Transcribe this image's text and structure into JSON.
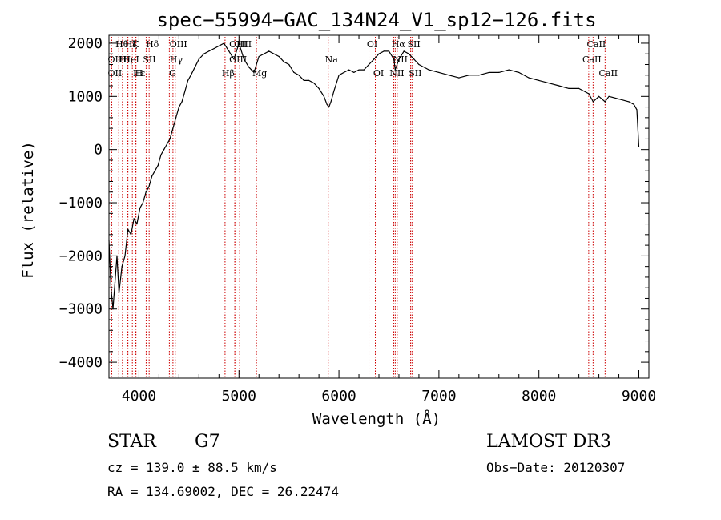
{
  "chart_data": {
    "type": "line",
    "title": "spec−55994−GAC_134N24_V1_sp12−126.fits",
    "xlabel": "Wavelength (Å)",
    "ylabel": "Flux (relative)",
    "xlim": [
      3700,
      9100
    ],
    "ylim": [
      -4300,
      2150
    ],
    "x_ticks": [
      4000,
      5000,
      6000,
      7000,
      8000,
      9000
    ],
    "x_tick_labels": [
      "4000",
      "5000",
      "6000",
      "7000",
      "8000",
      "9000"
    ],
    "y_ticks": [
      -4000,
      -3000,
      -2000,
      -1000,
      0,
      1000,
      2000
    ],
    "y_tick_labels": [
      "−4000",
      "−3000",
      "−2000",
      "−1000",
      "0",
      "1000",
      "2000"
    ],
    "series": [
      {
        "name": "spectrum",
        "x": [
          3700,
          3720,
          3740,
          3760,
          3780,
          3800,
          3830,
          3860,
          3890,
          3920,
          3950,
          3980,
          4010,
          4040,
          4070,
          4100,
          4130,
          4160,
          4190,
          4220,
          4250,
          4280,
          4310,
          4340,
          4370,
          4400,
          4430,
          4460,
          4490,
          4520,
          4560,
          4600,
          4650,
          4700,
          4750,
          4800,
          4850,
          4900,
          4950,
          5000,
          5050,
          5100,
          5150,
          5200,
          5250,
          5300,
          5350,
          5400,
          5450,
          5500,
          5550,
          5600,
          5650,
          5700,
          5750,
          5800,
          5850,
          5880,
          5900,
          5920,
          5950,
          6000,
          6050,
          6100,
          6150,
          6200,
          6250,
          6300,
          6350,
          6400,
          6450,
          6500,
          6550,
          6563,
          6600,
          6650,
          6700,
          6750,
          6800,
          6900,
          7000,
          7100,
          7200,
          7300,
          7400,
          7500,
          7600,
          7700,
          7800,
          7900,
          8000,
          8100,
          8200,
          8300,
          8400,
          8500,
          8542,
          8600,
          8662,
          8700,
          8800,
          8900,
          8950,
          8980,
          9000
        ],
        "values": [
          -1700,
          -2600,
          -3000,
          -2500,
          -2000,
          -2700,
          -2200,
          -2000,
          -1500,
          -1600,
          -1300,
          -1400,
          -1100,
          -1000,
          -800,
          -700,
          -500,
          -400,
          -300,
          -100,
          0,
          100,
          200,
          400,
          600,
          800,
          900,
          1100,
          1300,
          1400,
          1550,
          1700,
          1800,
          1850,
          1900,
          1950,
          2000,
          1850,
          1700,
          2000,
          1700,
          1550,
          1450,
          1750,
          1800,
          1850,
          1800,
          1750,
          1650,
          1600,
          1450,
          1400,
          1300,
          1300,
          1250,
          1150,
          1000,
          850,
          800,
          900,
          1100,
          1400,
          1450,
          1500,
          1450,
          1500,
          1500,
          1600,
          1700,
          1800,
          1850,
          1850,
          1700,
          1500,
          1700,
          1850,
          1800,
          1700,
          1600,
          1500,
          1450,
          1400,
          1350,
          1400,
          1400,
          1450,
          1450,
          1500,
          1450,
          1350,
          1300,
          1250,
          1200,
          1150,
          1150,
          1050,
          900,
          1000,
          900,
          1000,
          950,
          900,
          850,
          750,
          50
        ]
      }
    ],
    "line_markers": [
      {
        "label": "Hθ",
        "wavelength": 3798,
        "row": 0
      },
      {
        "label": "Hζ",
        "wavelength": 3889,
        "row": 0
      },
      {
        "label": "K",
        "wavelength": 3934,
        "row": 0
      },
      {
        "label": "Hδ",
        "wavelength": 4102,
        "row": 0
      },
      {
        "label": "OIII",
        "wavelength": 4363,
        "row": 0
      },
      {
        "label": "OIII",
        "wavelength": 4959,
        "row": 0
      },
      {
        "label": "OIII",
        "wavelength": 5007,
        "row": 0
      },
      {
        "label": "OI",
        "wavelength": 6300,
        "row": 0
      },
      {
        "label": "Hα",
        "wavelength": 6563,
        "row": 0
      },
      {
        "label": "SII",
        "wavelength": 6717,
        "row": 0
      },
      {
        "label": "CaII",
        "wavelength": 8542,
        "row": 0
      },
      {
        "label": "OII",
        "wavelength": 3727,
        "row": 1
      },
      {
        "label": "Hη",
        "wavelength": 3835,
        "row": 1
      },
      {
        "label": "HeI",
        "wavelength": 3889,
        "row": 1
      },
      {
        "label": "SII",
        "wavelength": 4072,
        "row": 1
      },
      {
        "label": "Hγ",
        "wavelength": 4340,
        "row": 1
      },
      {
        "label": "OIII",
        "wavelength": 4959,
        "row": 1
      },
      {
        "label": "Na",
        "wavelength": 5893,
        "row": 1
      },
      {
        "label": "NII",
        "wavelength": 6583,
        "row": 1
      },
      {
        "label": "CaII",
        "wavelength": 8498,
        "row": 1
      },
      {
        "label": "OII",
        "wavelength": 3727,
        "row": 2
      },
      {
        "label": "Hε",
        "wavelength": 3970,
        "row": 2
      },
      {
        "label": "H",
        "wavelength": 3968,
        "row": 2
      },
      {
        "label": "G",
        "wavelength": 4304,
        "row": 2
      },
      {
        "label": "Hβ",
        "wavelength": 4861,
        "row": 2
      },
      {
        "label": "Mg",
        "wavelength": 5175,
        "row": 2
      },
      {
        "label": "OI",
        "wavelength": 6364,
        "row": 2
      },
      {
        "label": "NII",
        "wavelength": 6548,
        "row": 2
      },
      {
        "label": "SII",
        "wavelength": 6731,
        "row": 2
      },
      {
        "label": "CaII",
        "wavelength": 8662,
        "row": 2
      }
    ]
  },
  "info": {
    "class": "STAR",
    "subclass": "G7",
    "survey": "LAMOST DR3",
    "cz": "cz = 139.0 ± 88.5 km/s",
    "obs_date": "Obs−Date: 20120307",
    "radec": "RA = 134.69002, DEC =  26.22474"
  },
  "colors": {
    "spectrum": "#000000",
    "marker_line": "#cc0000",
    "axis": "#000000"
  }
}
